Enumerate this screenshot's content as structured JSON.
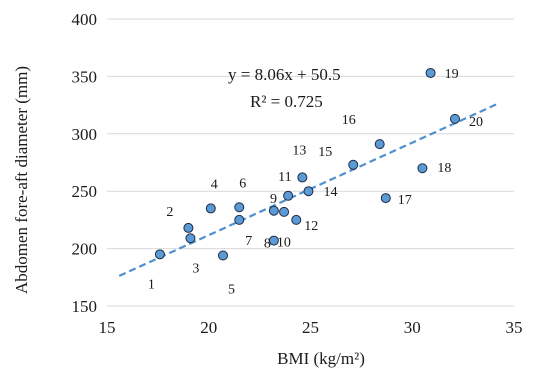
{
  "chart_data": {
    "type": "scatter",
    "xlabel": "BMI (kg/m²)",
    "ylabel": "Abdomen fore-aft diameter (mm)",
    "xlim": [
      15,
      35
    ],
    "ylim": [
      150,
      400
    ],
    "x_ticks": [
      "15",
      "20",
      "25",
      "30",
      "35"
    ],
    "y_ticks": [
      "150",
      "200",
      "250",
      "300",
      "350",
      "400"
    ],
    "grid": "horizontal",
    "points": [
      {
        "label": "1",
        "x": 17.6,
        "y": 195
      },
      {
        "label": "2",
        "x": 19.0,
        "y": 218
      },
      {
        "label": "3",
        "x": 19.1,
        "y": 209
      },
      {
        "label": "4",
        "x": 20.1,
        "y": 235
      },
      {
        "label": "5",
        "x": 20.7,
        "y": 194
      },
      {
        "label": "6",
        "x": 21.5,
        "y": 236
      },
      {
        "label": "7",
        "x": 21.5,
        "y": 225
      },
      {
        "label": "8",
        "x": 23.2,
        "y": 233
      },
      {
        "label": "9",
        "x": 23.7,
        "y": 232
      },
      {
        "label": "10",
        "x": 23.2,
        "y": 207
      },
      {
        "label": "11",
        "x": 23.9,
        "y": 246
      },
      {
        "label": "12",
        "x": 24.3,
        "y": 225
      },
      {
        "label": "13",
        "x": 24.6,
        "y": 262
      },
      {
        "label": "14",
        "x": 24.9,
        "y": 250
      },
      {
        "label": "15",
        "x": 27.1,
        "y": 273
      },
      {
        "label": "16",
        "x": 28.4,
        "y": 291
      },
      {
        "label": "17",
        "x": 28.7,
        "y": 244
      },
      {
        "label": "18",
        "x": 30.5,
        "y": 270
      },
      {
        "label": "19",
        "x": 30.9,
        "y": 353
      },
      {
        "label": "20",
        "x": 32.1,
        "y": 313
      }
    ],
    "trendline": {
      "slope": 8.06,
      "intercept": 50.5,
      "x_range": [
        15.6,
        34.2
      ]
    },
    "equation_text": "y = 8.06x + 50.5",
    "r_squared_text": "R² = 0.725",
    "colors": {
      "point_fill": "#5b9bd5",
      "point_stroke": "#1f2a44",
      "trendline": "#4f8fd0",
      "grid": "#d9d9d9"
    }
  }
}
